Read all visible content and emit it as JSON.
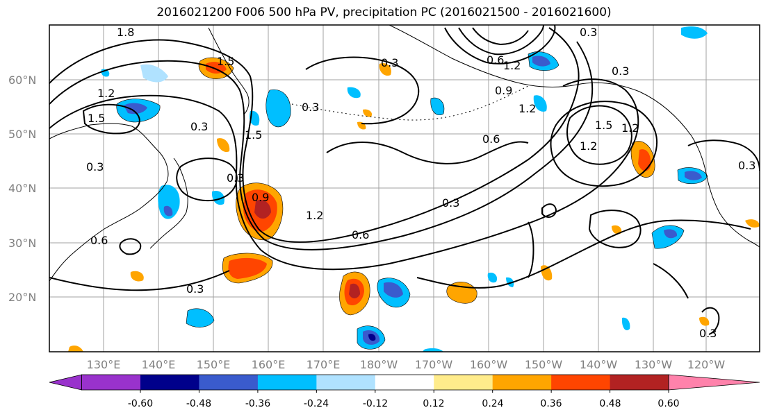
{
  "title": "2016021200 F006 500 hPa PV, precipitation PC (2016021500 - 2016021600)",
  "lat_labels": [
    "60°N",
    "50°N",
    "40°N",
    "30°N",
    "20°N"
  ],
  "lon_labels": [
    "130°E",
    "140°E",
    "150°E",
    "160°E",
    "170°E",
    "180°W",
    "170°W",
    "160°W",
    "150°W",
    "140°W",
    "130°W",
    "120°W"
  ],
  "contour_labels": [
    "1.8",
    "1.5",
    "1.2",
    "1.5",
    "0.3",
    "0.3",
    "0.3",
    "0.6",
    "0.3",
    "0.6",
    "0.9",
    "0.3",
    "1.5",
    "0.3",
    "0.3",
    "0.6",
    "1.2",
    "1.5",
    "1.2",
    "0.6",
    "0.3",
    "1.2",
    "1.2",
    "0.9",
    "0.3",
    "0.3",
    "1.2",
    "0.3"
  ],
  "colorbar": {
    "tick_labels": [
      "-0.60",
      "-0.48",
      "-0.36",
      "-0.24",
      "-0.12",
      "0.12",
      "0.24",
      "0.36",
      "0.48",
      "0.60"
    ],
    "colors": [
      "#9932cc",
      "#00008b",
      "#3a5bcd",
      "#00bfff",
      "#b0e2ff",
      "#ffffff",
      "#ffec8b",
      "#ffa500",
      "#ff4500",
      "#b22222",
      "#ff82ab"
    ]
  }
}
